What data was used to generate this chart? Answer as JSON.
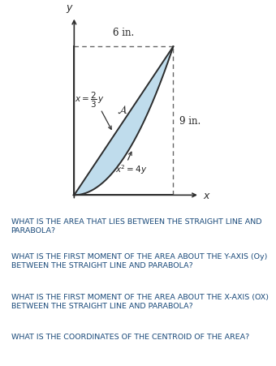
{
  "fig_width": 3.4,
  "fig_height": 4.52,
  "dpi": 100,
  "parabola_color": "#b8d9ea",
  "edge_color": "#2c2c2c",
  "axis_color": "#2c2c2c",
  "dashed_color": "#666666",
  "text_color": "#222222",
  "x_max": 6,
  "y_max": 9,
  "questions": [
    {
      "text": "WHAT IS THE AREA THAT LIES BETWEEN THE STRAIGHT LINE AND\nPARABOLA?",
      "color": "#1a4a7a",
      "fontsize": 6.8,
      "bold": false
    },
    {
      "text": "WHAT IS THE FIRST MOMENT OF THE AREA ABOUT THE Y-AXIS (Oy)\nBETWEEN THE STRAIGHT LINE AND PARABOLA?",
      "color": "#1a4a7a",
      "fontsize": 6.8,
      "bold": false
    },
    {
      "text": "WHAT IS THE FIRST MOMENT OF THE AREA ABOUT THE X-AXIS (OX)\nBETWEEN THE STRAIGHT LINE AND PARABOLA?",
      "color": "#1a4a7a",
      "fontsize": 6.8,
      "bold": false
    },
    {
      "text": "WHAT IS THE COORDINATES OF THE CENTROID OF THE AREA?",
      "color": "#1a4a7a",
      "fontsize": 6.8,
      "bold": false
    }
  ],
  "bg_color": "#ffffff"
}
